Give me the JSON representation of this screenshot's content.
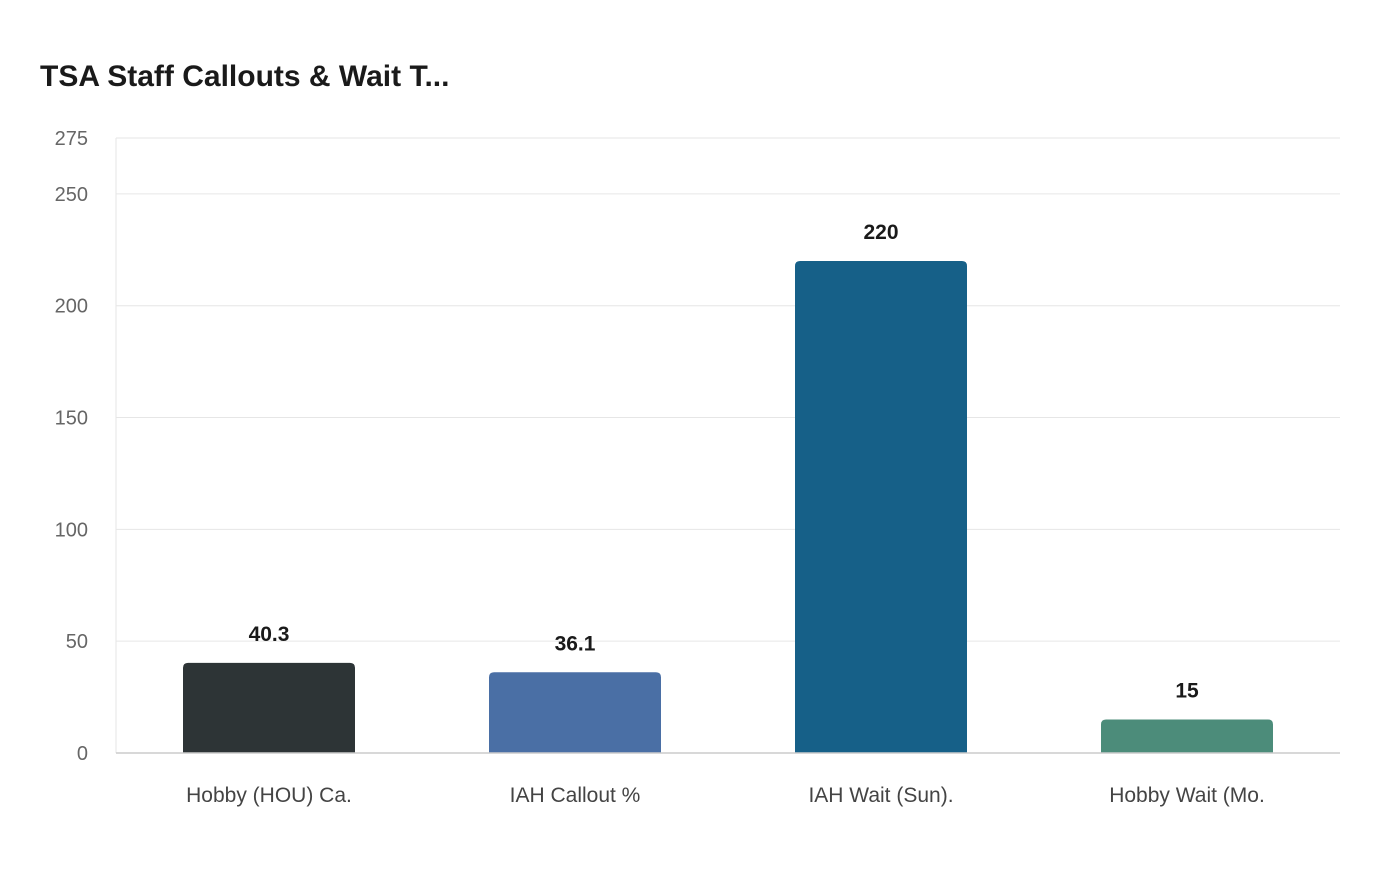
{
  "chart_data": {
    "type": "bar",
    "title": "TSA Staff Callouts & Wait T...",
    "categories": [
      "Hobby (HOU) Ca.",
      "IAH Callout %",
      "IAH Wait (Sun).",
      "Hobby Wait (Mo."
    ],
    "values": [
      40.3,
      36.1,
      220,
      15
    ],
    "data_labels": [
      "40.3",
      "36.1",
      "220",
      "15"
    ],
    "y_ticks": [
      0,
      50,
      100,
      150,
      200,
      250,
      275
    ],
    "ylim": [
      0,
      275
    ],
    "xlabel": "",
    "ylabel": "",
    "grid": true,
    "colors": [
      "#2d3436",
      "#4a6fa5",
      "#166088",
      "#4c8c7a"
    ]
  }
}
